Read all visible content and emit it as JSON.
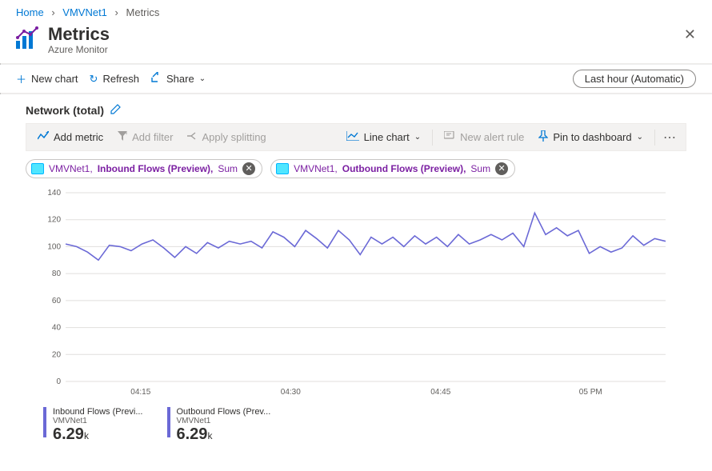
{
  "breadcrumb": {
    "home": "Home",
    "resource": "VMVNet1",
    "page": "Metrics"
  },
  "header": {
    "title": "Metrics",
    "subtitle": "Azure Monitor"
  },
  "cmdbar": {
    "new_chart": "New chart",
    "refresh": "Refresh",
    "share": "Share",
    "time_range": "Last hour (Automatic)"
  },
  "section": {
    "title": "Network (total)"
  },
  "toolbar": {
    "add_metric": "Add metric",
    "add_filter": "Add filter",
    "apply_splitting": "Apply splitting",
    "chart_type": "Line chart",
    "new_alert": "New alert rule",
    "pin": "Pin to dashboard"
  },
  "pills": [
    {
      "resource": "VMVNet1",
      "metric": "Inbound Flows (Preview)",
      "agg": "Sum"
    },
    {
      "resource": "VMVNet1",
      "metric": "Outbound Flows (Preview)",
      "agg": "Sum"
    }
  ],
  "chart": {
    "type": "line",
    "ylim": [
      0,
      140
    ],
    "ytick_step": 20,
    "yticks": [
      0,
      20,
      40,
      60,
      80,
      100,
      120,
      140
    ],
    "xticks": [
      "04:15",
      "04:30",
      "04:45",
      "05 PM"
    ],
    "background_color": "#ffffff",
    "grid_color": "#e1dfdd",
    "series_color": "#6b69d6",
    "line_width": 1.6,
    "values": [
      102,
      100,
      96,
      90,
      101,
      100,
      97,
      102,
      105,
      99,
      92,
      100,
      95,
      103,
      99,
      104,
      102,
      104,
      99,
      111,
      107,
      100,
      112,
      106,
      99,
      112,
      105,
      94,
      107,
      102,
      107,
      100,
      108,
      102,
      107,
      100,
      109,
      102,
      105,
      109,
      105,
      110,
      100,
      125,
      109,
      114,
      108,
      112,
      95,
      100,
      96,
      99,
      108,
      101,
      106,
      104
    ]
  },
  "legend": [
    {
      "name": "Inbound Flows (Previ...",
      "resource": "VMVNet1",
      "value": "6.29",
      "unit": "k",
      "color": "#6b69d6"
    },
    {
      "name": "Outbound Flows (Prev...",
      "resource": "VMVNet1",
      "value": "6.29",
      "unit": "k",
      "color": "#6b69d6"
    }
  ]
}
